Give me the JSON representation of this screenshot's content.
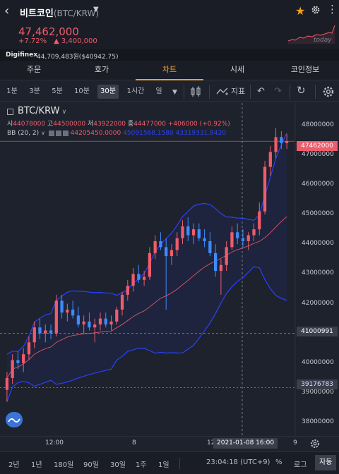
{
  "header": {
    "coin_name": "비트코인",
    "coin_code": "(BTC/KRW)",
    "price": "47,462,000",
    "change_pct": "+7.72%",
    "change_abs": "▲ 3,400,000",
    "sparkline_label": "today",
    "accent_color": "#ef5c6b"
  },
  "exchange": {
    "name": "Digifinex",
    "price": "44,709,483원($40942.75)"
  },
  "tabs": [
    "주문",
    "호가",
    "차트",
    "시세",
    "코인정보"
  ],
  "active_tab": "차트",
  "toolbar": {
    "timeframes": [
      "1분",
      "3분",
      "5분",
      "10분",
      "30분",
      "1시간",
      "일"
    ],
    "active_timeframe": "30분",
    "indicator_label": "지표"
  },
  "legend": {
    "pair": "BTC/KRW",
    "open_label": "시",
    "open": "44078000",
    "high_label": "고",
    "high": "44500000",
    "low_label": "저",
    "low": "43922000",
    "close_label": "종",
    "close": "44477000",
    "change": "+406000 (+0.92%)",
    "bb_label": "BB (20, 2)",
    "bb_mid": "44205450.0000",
    "bb_upper_lower": "45091568.1580  43319331.8420"
  },
  "price_axis": {
    "ticks": [
      "48000000",
      "47000000",
      "46000000",
      "45000000",
      "44000000",
      "43000000",
      "42000000",
      "41000000",
      "40000000",
      "39000000",
      "38000000"
    ],
    "current_label": "47462000",
    "crosshair_label": "41000991",
    "low_marker_label": "39176783"
  },
  "time_axis": {
    "ticks": [
      "12:00",
      "8",
      "12",
      "9"
    ],
    "crosshair_date": "2021-01-08  16:00"
  },
  "bottom": {
    "ranges": [
      "2년",
      "1년",
      "180일",
      "90일",
      "30일",
      "1주",
      "1일"
    ],
    "clock": "23:04:18 (UTC+9)",
    "percent": "%",
    "log": "로그",
    "auto": "자동"
  },
  "chart_data": {
    "type": "candlestick",
    "title": "BTC/KRW",
    "interval": "30분",
    "ylim": [
      37600000,
      48700000
    ],
    "up_color": "#ef5c6b",
    "down_color": "#3d8bff",
    "bb_mid_color": "#ef5c6b",
    "bb_band_color": "#2941ff",
    "current_price": 47462000,
    "crosshair_price": 41000991,
    "marker_price": 39176783,
    "candles": [
      [
        39100000,
        39700000,
        38700000,
        39500000
      ],
      [
        39500000,
        40300000,
        39300000,
        40100000
      ],
      [
        40100000,
        40400000,
        39800000,
        40000000
      ],
      [
        40000000,
        40500000,
        39700000,
        40300000
      ],
      [
        40300000,
        40900000,
        40100000,
        40700000
      ],
      [
        40700000,
        41400000,
        40500000,
        41200000
      ],
      [
        41200000,
        41500000,
        40800000,
        41000000
      ],
      [
        41000000,
        41300000,
        40700000,
        41100000
      ],
      [
        41100000,
        41300000,
        40800000,
        41000000
      ],
      [
        41000000,
        42300000,
        40900000,
        42100000
      ],
      [
        42100000,
        42300000,
        41500000,
        41700000
      ],
      [
        41700000,
        42000000,
        41400000,
        41800000
      ],
      [
        41800000,
        42100000,
        41500000,
        41600000
      ],
      [
        41600000,
        41900000,
        41200000,
        41300000
      ],
      [
        41300000,
        41600000,
        41000000,
        41400000
      ],
      [
        41400000,
        41700000,
        41100000,
        41200000
      ],
      [
        41200000,
        41500000,
        40700000,
        41300000
      ],
      [
        41300000,
        41700000,
        41100000,
        41500000
      ],
      [
        41500000,
        41700000,
        41200000,
        41300000
      ],
      [
        41300000,
        41600000,
        41100000,
        41400000
      ],
      [
        41400000,
        41900000,
        41300000,
        41800000
      ],
      [
        41800000,
        42400000,
        41600000,
        42300000
      ],
      [
        42300000,
        42800000,
        42100000,
        42600000
      ],
      [
        42600000,
        43200000,
        42400000,
        43000000
      ],
      [
        43000000,
        43300000,
        42700000,
        42800000
      ],
      [
        42800000,
        43100000,
        42600000,
        42900000
      ],
      [
        42900000,
        43900000,
        42800000,
        43700000
      ],
      [
        43700000,
        44300000,
        43500000,
        44100000
      ],
      [
        44100000,
        44400000,
        43800000,
        43900000
      ],
      [
        43900000,
        44200000,
        41800000,
        43600000
      ],
      [
        43600000,
        44000000,
        43300000,
        43800000
      ],
      [
        43800000,
        44400000,
        43600000,
        44200000
      ],
      [
        44200000,
        44800000,
        44000000,
        44600000
      ],
      [
        44600000,
        44900000,
        44100000,
        44300000
      ],
      [
        44300000,
        44700000,
        44000000,
        44500000
      ],
      [
        44500000,
        44700000,
        44100000,
        44200000
      ],
      [
        44200000,
        44500000,
        43900000,
        44100000
      ],
      [
        44100000,
        44400000,
        43600000,
        43700000
      ],
      [
        43700000,
        44000000,
        42900000,
        43100000
      ],
      [
        43100000,
        43500000,
        42300000,
        43300000
      ],
      [
        43300000,
        44100000,
        43100000,
        43900000
      ],
      [
        43900000,
        44600000,
        43800000,
        44400000
      ],
      [
        44400000,
        44700000,
        44000000,
        44200000
      ],
      [
        44200000,
        44500000,
        43900000,
        44100000
      ],
      [
        44100000,
        44400000,
        43800000,
        44300000
      ],
      [
        44300000,
        44700000,
        44100000,
        44500000
      ],
      [
        44500000,
        45400000,
        44300000,
        45100000
      ],
      [
        45100000,
        46800000,
        45000000,
        46600000
      ],
      [
        46600000,
        47300000,
        46300000,
        47100000
      ],
      [
        47100000,
        47900000,
        46900000,
        47600000
      ],
      [
        47600000,
        47800000,
        47200000,
        47400000
      ],
      [
        47400000,
        47700000,
        47200000,
        47462000
      ]
    ]
  }
}
